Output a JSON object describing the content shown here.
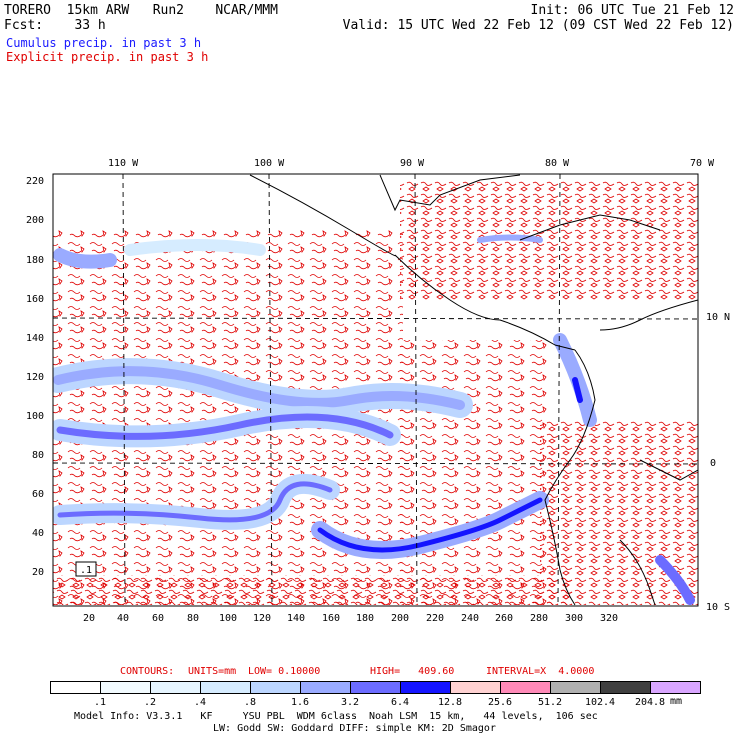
{
  "header": {
    "line1_left": "TORERO  15km ARW   Run2    NCAR/MMM",
    "line1_right": "Init: 06 UTC Tue 21 Feb 12",
    "line2_left": "Fcst:    33 h",
    "line2_right": "Valid: 15 UTC Wed 22 Feb 12 (09 CST Wed 22 Feb 12)",
    "field1": "Cumulus precip. in past 3 h",
    "field2": "Explicit precip. in past 3 h"
  },
  "axes": {
    "lon_top": [
      "110 W",
      "100 W",
      "90 W",
      "80 W",
      "70 W"
    ],
    "lat_right": [
      "10 N",
      "0",
      "10 S"
    ],
    "x_ticks": [
      "20",
      "40",
      "60",
      "80",
      "100",
      "120",
      "140",
      "160",
      "180",
      "200",
      "220",
      "240",
      "260",
      "280",
      "300",
      "320"
    ],
    "y_ticks": [
      "220",
      "200",
      "180",
      "160",
      "140",
      "120",
      "100",
      "80",
      "60",
      "40",
      "20"
    ],
    "box_label": ".1"
  },
  "contours_text": {
    "contours": "CONTOURS:",
    "units": "UNITS=mm",
    "low": "LOW= 0.10000",
    "high": "HIGH=   409.60",
    "interval": "INTERVAL=X  4.0000"
  },
  "colorbar": {
    "labels": [
      ".1",
      ".2",
      ".4",
      ".8",
      "1.6",
      "3.2",
      "6.4",
      "12.8",
      "25.6",
      "51.2",
      "102.4",
      "204.8"
    ],
    "unit": "mm",
    "colors": [
      "#ffffff",
      "#f2fbff",
      "#e6f5ff",
      "#d6ecff",
      "#bcd6ff",
      "#9aabff",
      "#6c6cff",
      "#1414ff",
      "#ffd2d2",
      "#ff8ab8",
      "#b0b0b0",
      "#404040",
      "#d9a6ff"
    ]
  },
  "footer": {
    "line1": "Model Info: V3.3.1   KF     YSU PBL  WDM 6class  Noah LSM  15 km,   44 levels,  106 sec",
    "line2": "LW: Godd SW: Goddard DIFF: simple KM: 2D Smagor"
  }
}
